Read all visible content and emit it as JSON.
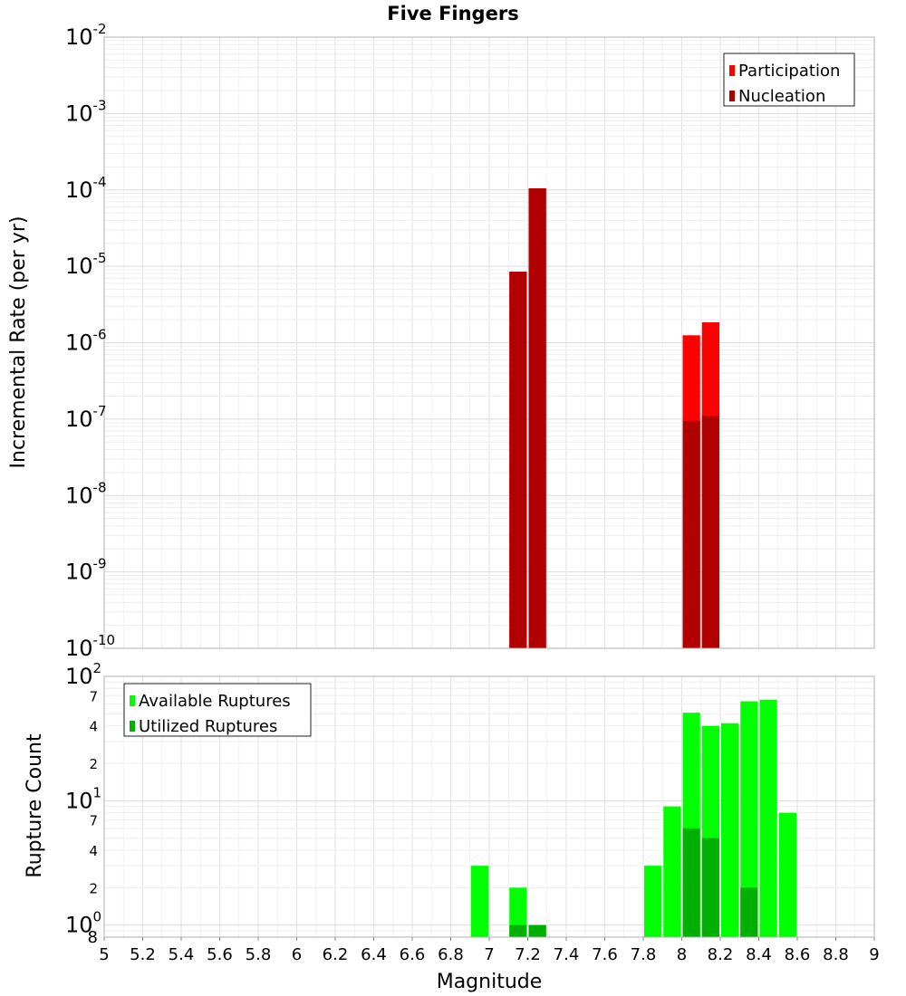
{
  "chart_data": [
    {
      "type": "bar",
      "title": "Five Fingers",
      "ylabel": "Incremental Rate (per yr)",
      "yscale": "log",
      "ylim": [
        1e-10,
        0.01
      ],
      "xlim": [
        5,
        9
      ],
      "grid": true,
      "legend_position": "top-right",
      "y_tick_labels": [
        {
          "base": "10",
          "exp": "-2"
        },
        {
          "base": "10",
          "exp": "-3"
        },
        {
          "base": "10",
          "exp": "-4"
        },
        {
          "base": "10",
          "exp": "-5"
        },
        {
          "base": "10",
          "exp": "-6"
        },
        {
          "base": "10",
          "exp": "-7"
        },
        {
          "base": "10",
          "exp": "-8"
        },
        {
          "base": "10",
          "exp": "-9"
        },
        {
          "base": "10",
          "exp": "-10"
        }
      ],
      "bin_width": 0.1,
      "series": [
        {
          "name": "Participation",
          "color": "#ff0000",
          "x": [
            7.15,
            7.25,
            8.05,
            8.15
          ],
          "values": [
            8.5e-06,
            0.000105,
            1.25e-06,
            1.85e-06
          ]
        },
        {
          "name": "Nucleation",
          "color": "#b00000",
          "x": [
            7.15,
            7.25,
            8.05,
            8.15
          ],
          "values": [
            8.5e-06,
            0.000105,
            9.5e-08,
            1.1e-07
          ]
        }
      ]
    },
    {
      "type": "bar",
      "xlabel": "Magnitude",
      "ylabel": "Rupture Count",
      "yscale": "log",
      "ylim": [
        0.8,
        100
      ],
      "xlim": [
        5,
        9
      ],
      "grid": true,
      "legend_position": "top-left",
      "x_ticks": [
        "5",
        "5.2",
        "5.4",
        "5.6",
        "5.8",
        "6",
        "6.2",
        "6.4",
        "6.6",
        "6.8",
        "7",
        "7.2",
        "7.4",
        "7.6",
        "7.8",
        "8",
        "8.2",
        "8.4",
        "8.6",
        "8.8",
        "9"
      ],
      "y_major_labels": [
        {
          "base": "10",
          "exp": "2"
        },
        {
          "base": "10",
          "exp": "1"
        },
        {
          "base": "10",
          "exp": "0"
        }
      ],
      "y_minor_labels": [
        {
          "label": "7",
          "value": 70
        },
        {
          "label": "4",
          "value": 40
        },
        {
          "label": "2",
          "value": 20
        },
        {
          "label": "7",
          "value": 7
        },
        {
          "label": "4",
          "value": 4
        },
        {
          "label": "2",
          "value": 2
        },
        {
          "label": "8",
          "value": 0.8
        }
      ],
      "bin_width": 0.1,
      "series": [
        {
          "name": "Available Ruptures",
          "color": "#00ff00",
          "x": [
            6.95,
            7.15,
            7.25,
            7.85,
            7.95,
            8.05,
            8.15,
            8.25,
            8.35,
            8.45,
            8.55
          ],
          "values": [
            3,
            2,
            1,
            3,
            9,
            51,
            40,
            42,
            63,
            65,
            8
          ]
        },
        {
          "name": "Utilized Ruptures",
          "color": "#00b000",
          "x": [
            7.15,
            7.25,
            8.05,
            8.15,
            8.35
          ],
          "values": [
            1,
            1,
            6,
            5,
            2
          ]
        }
      ]
    }
  ]
}
